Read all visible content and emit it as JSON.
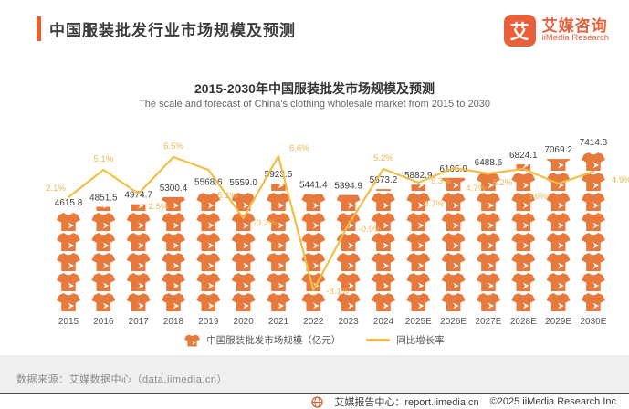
{
  "header": {
    "title": "中国服装批发行业市场规模及预测",
    "logo_mark": "艾",
    "logo_cn": "艾媒咨询",
    "logo_en": "iiMedia Research"
  },
  "chart": {
    "title": "2015-2030年中国服装批发市场规模及预测",
    "subtitle": "The scale and forecast of China's clothing wholesale market from 2015 to 2030"
  },
  "chart_data": {
    "type": "bar",
    "subtype": "pictogram-bar-with-growth-line",
    "categories": [
      "2015",
      "2016",
      "2017",
      "2018",
      "2019",
      "2020",
      "2021",
      "2022",
      "2023",
      "2024",
      "2025E",
      "2026E",
      "2027E",
      "2028E",
      "2029E",
      "2030E"
    ],
    "series": [
      {
        "name": "中国服装批发市场规模（亿元）",
        "type": "pictogram-bar",
        "unit": "亿元",
        "values": [
          4615.8,
          4851.5,
          4974.7,
          5300.4,
          5568.6,
          5559.0,
          5923.5,
          5441.4,
          5394.9,
          5673.2,
          5882.9,
          6195.9,
          6488.6,
          6824.1,
          7069.2,
          7414.8
        ],
        "labels": [
          "4615.8",
          "4851.5",
          "4974.7",
          "5300.4",
          "5568.6",
          "5559.0",
          "5923.5",
          "5441.4",
          "5394.9",
          "5673.2",
          "5882.9",
          "6195.9",
          "6488.6",
          "6824.1",
          "7069.2",
          "7414.8"
        ]
      },
      {
        "name": "同比增长率",
        "type": "line",
        "unit": "%",
        "values": [
          2.1,
          5.1,
          2.5,
          6.5,
          5.1,
          -0.2,
          6.6,
          -8.1,
          -0.9,
          5.2,
          3.7,
          5.3,
          4.7,
          5.2,
          3.6,
          4.9
        ],
        "labels": [
          "2.1%",
          "5.1%",
          "2.5%",
          "6.5%",
          "5.1%",
          "-0.2%",
          "6.6%",
          "-8.1%",
          "-0.9%",
          "5.2%",
          "3.7%",
          "5.3%",
          "4.7%",
          "5.2%",
          "3.6%",
          "4.9%"
        ]
      }
    ],
    "legend": [
      "中国服装批发市场规模（亿元）",
      "同比增长率"
    ],
    "legend_position": "bottom",
    "grid": false,
    "colors": {
      "bar": "#E8793C",
      "line": "#F2BE45",
      "percent_label": "#E9B850",
      "value_label": "#3F3F3F",
      "axis_label": "#555555",
      "accent": "#F15A29",
      "logo": "#E8603A"
    }
  },
  "footer": {
    "source": "数据来源：艾媒数据中心（data.iimedia.cn）",
    "report": "艾媒报告中心：report.iimedia.cn",
    "copyright": "©2025  iiMedia Research  Inc"
  }
}
